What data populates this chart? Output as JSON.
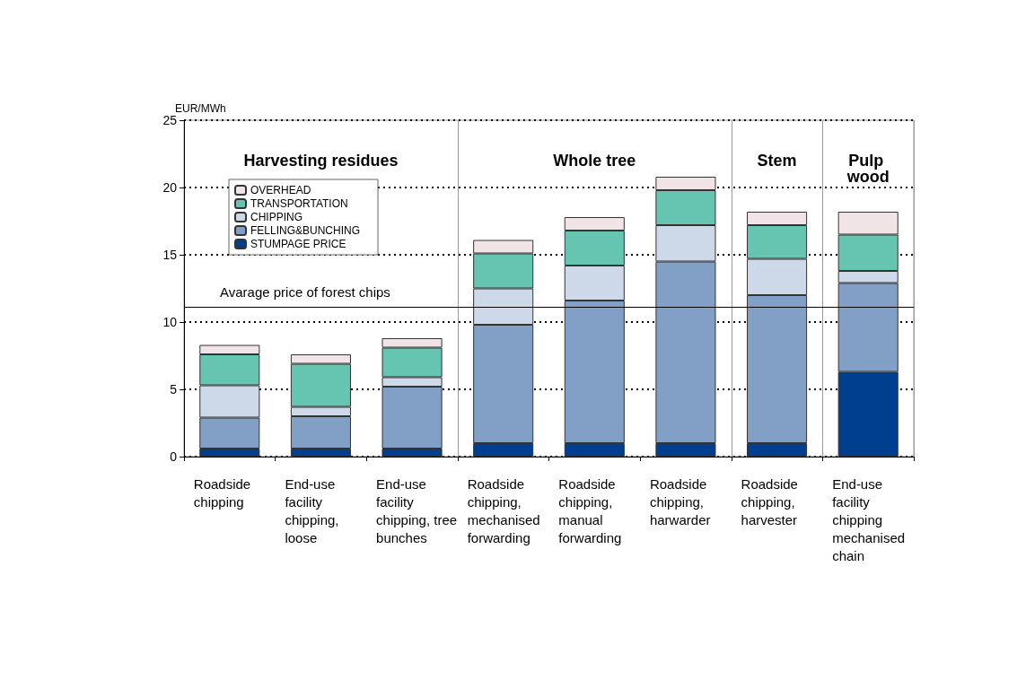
{
  "chart_data": {
    "type": "bar",
    "stacked": true,
    "ylabel": "EUR/MWh",
    "categories": [
      "Roadside chipping",
      "End-use facility chipping, loose",
      "End-use facility chipping, tree bunches",
      "Roadside chipping, mechanised forwarding",
      "Roadside chipping, manual forwarding",
      "Roadside chipping, harwarder",
      "Roadside chipping, harvester",
      "End-use facility chipping mechanised chain"
    ],
    "series": [
      {
        "name": "STUMPAGE PRICE",
        "color": "#003f8f",
        "values": [
          0.6,
          0.6,
          0.6,
          1.0,
          1.0,
          1.0,
          1.0,
          6.3
        ]
      },
      {
        "name": "FELLING&BUNCHING",
        "color": "#829fc6",
        "values": [
          2.3,
          2.4,
          4.6,
          8.8,
          10.6,
          13.5,
          11.0,
          6.6
        ]
      },
      {
        "name": "CHIPPING",
        "color": "#cdd8e8",
        "values": [
          2.4,
          0.7,
          0.7,
          2.7,
          2.6,
          2.7,
          2.7,
          0.9
        ]
      },
      {
        "name": "TRANSPORTATION",
        "color": "#66c5b0",
        "values": [
          2.3,
          3.2,
          2.2,
          2.6,
          2.6,
          2.6,
          2.5,
          2.7
        ]
      },
      {
        "name": "OVERHEAD",
        "color": "#f0e4e6",
        "values": [
          0.7,
          0.7,
          0.7,
          1.0,
          1.0,
          1.0,
          1.0,
          1.7
        ]
      }
    ],
    "ylim": [
      0,
      25
    ],
    "yticks": [
      0,
      5,
      10,
      15,
      20,
      25
    ],
    "grid": "y",
    "legend": "top left",
    "ref_lines": [
      {
        "axis": "y",
        "value": 11.1,
        "label": "Avarage price of forest chips",
        "color": "#000000"
      }
    ],
    "annotations": [
      "Harvesting residues",
      "Whole tree",
      "Stem",
      "Pulp wood"
    ]
  }
}
